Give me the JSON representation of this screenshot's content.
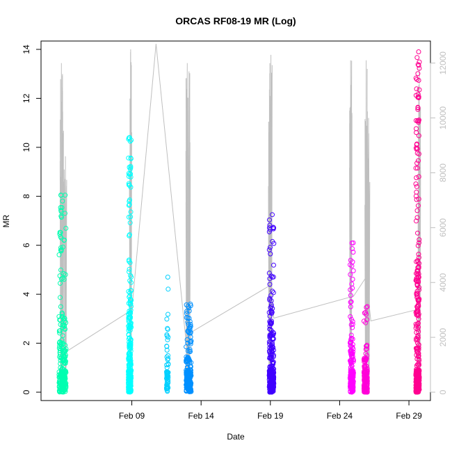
{
  "chart_data": {
    "type": "scatter",
    "title": "ORCAS RF08-19 MR (Log)",
    "xlabel": "Date",
    "ylabel": "MR",
    "xlim": [
      "2016-02-03",
      "2016-03-01"
    ],
    "ylim": [
      0,
      14
    ],
    "y2lim": [
      0,
      12500
    ],
    "x_ticks": [
      {
        "date": "2016-02-09",
        "label": "Feb 09"
      },
      {
        "date": "2016-02-14",
        "label": "Feb 14"
      },
      {
        "date": "2016-02-19",
        "label": "Feb 19"
      },
      {
        "date": "2016-02-24",
        "label": "Feb 24"
      },
      {
        "date": "2016-02-29",
        "label": "Feb 29"
      }
    ],
    "y_ticks": [
      0,
      2,
      4,
      6,
      8,
      10,
      12,
      14
    ],
    "y2_ticks": [
      0,
      2000,
      4000,
      6000,
      8000,
      10000,
      12000
    ],
    "grid": false,
    "series": [
      {
        "color": "#00ffb0",
        "start": "2016-02-03T18:00",
        "end": "2016-02-04T06:00",
        "ymax": 8.05,
        "n": 260
      },
      {
        "color": "#00ffff",
        "start": "2016-02-08T18:00",
        "end": "2016-02-08T23:00",
        "ymax": 10.4,
        "n": 260
      },
      {
        "color": "#00d0ff",
        "start": "2016-02-11T12:00",
        "end": "2016-02-11T15:00",
        "ymax": 4.7,
        "n": 60
      },
      {
        "color": "#0090ff",
        "start": "2016-02-12T22:00",
        "end": "2016-02-13T07:00",
        "ymax": 3.6,
        "n": 240
      },
      {
        "color": "#4000ff",
        "start": "2016-02-18T22:00",
        "end": "2016-02-19T06:00",
        "ymax": 7.25,
        "n": 280
      },
      {
        "color": "#ff00ff",
        "start": "2016-02-24T18:00",
        "end": "2016-02-25T00:00",
        "ymax": 6.1,
        "n": 180
      },
      {
        "color": "#ff00d8",
        "start": "2016-02-25T18:00",
        "end": "2016-02-26T00:00",
        "ymax": 3.5,
        "n": 150
      },
      {
        "color": "#ff0090",
        "start": "2016-02-29T12:00",
        "end": "2016-02-29T18:00",
        "ymax": 13.9,
        "n": 320
      }
    ],
    "altitude_track": {
      "color": "#bfbfbf",
      "spikes": [
        {
          "x": "2016-02-03T22:00",
          "y": 12000
        },
        {
          "x": "2016-02-04T00:00",
          "y": 11600
        },
        {
          "x": "2016-02-04T05:00",
          "y": 8600
        },
        {
          "x": "2016-02-08T22:00",
          "y": 12500
        },
        {
          "x": "2016-02-13T00:00",
          "y": 12000
        },
        {
          "x": "2016-02-13T03:00",
          "y": 11700
        },
        {
          "x": "2016-02-18T23:00",
          "y": 12000
        },
        {
          "x": "2016-02-19T01:00",
          "y": 12300
        },
        {
          "x": "2016-02-24T19:00",
          "y": 12100
        },
        {
          "x": "2016-02-25T22:00",
          "y": 12100
        },
        {
          "x": "2016-02-26T02:00",
          "y": 10000
        },
        {
          "x": "2016-02-29T18:00",
          "y": 11800
        }
      ],
      "transits": [
        {
          "x": "2016-02-04T08:00",
          "y": 1500
        },
        {
          "x": "2016-02-09T00:00",
          "y": 3000
        },
        {
          "x": "2016-02-10T18:00",
          "y": 12700
        },
        {
          "x": "2016-02-13T00:00",
          "y": 1400
        },
        {
          "x": "2016-02-13T08:00",
          "y": 2200
        },
        {
          "x": "2016-02-19T00:00",
          "y": 3900
        },
        {
          "x": "2016-02-19T06:00",
          "y": 2700
        },
        {
          "x": "2016-02-25T00:00",
          "y": 3500
        },
        {
          "x": "2016-02-25T22:00",
          "y": 4200
        },
        {
          "x": "2016-02-26T06:00",
          "y": 2600
        },
        {
          "x": "2016-02-29T12:00",
          "y": 3000
        }
      ]
    }
  }
}
